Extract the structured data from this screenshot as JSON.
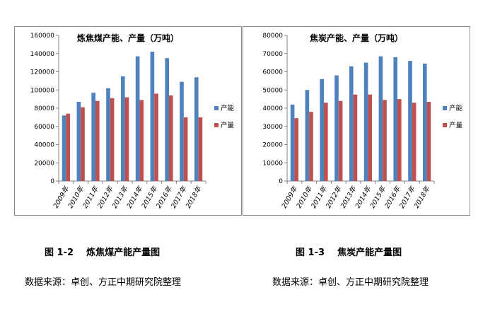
{
  "charts": [
    {
      "id": "left",
      "caption": "图 1-2    炼焦煤产能产量图",
      "source": "数据来源：卓创、方正中期研究院整理",
      "chart_data": {
        "type": "bar",
        "title": "炼焦煤产能、产量（万吨）",
        "categories": [
          "2009年",
          "2010年",
          "2011年",
          "2012年",
          "2013年",
          "2014年",
          "2015年",
          "2016年",
          "2017年",
          "2018年"
        ],
        "series": [
          {
            "name": "产能",
            "color": "#4f81bd",
            "values": [
              72000,
              87000,
              97000,
              102000,
              115000,
              137000,
              142000,
              135000,
              109000,
              114000
            ]
          },
          {
            "name": "产量",
            "color": "#c0504d",
            "values": [
              74000,
              81000,
              88000,
              91000,
              92000,
              89000,
              96000,
              94000,
              70000,
              70000
            ]
          }
        ],
        "ylim": [
          0,
          160000
        ],
        "yticks": [
          0,
          20000,
          40000,
          60000,
          80000,
          100000,
          120000,
          140000,
          160000
        ],
        "legend": "right",
        "grid": false
      }
    },
    {
      "id": "right",
      "caption": "图 1-3    焦炭产能产量图",
      "source": "数据来源：卓创、方正中期研究院整理",
      "chart_data": {
        "type": "bar",
        "title": "焦炭产能、产量（万吨）",
        "categories": [
          "2009年",
          "2010年",
          "2011年",
          "2012年",
          "2013年",
          "2014年",
          "2015年",
          "2016年",
          "2017年",
          "2018年"
        ],
        "series": [
          {
            "name": "产能",
            "color": "#4f81bd",
            "values": [
              42000,
              50000,
              56000,
              58000,
              63000,
              65000,
              68500,
              68000,
              66000,
              64500
            ]
          },
          {
            "name": "产量",
            "color": "#c0504d",
            "values": [
              34500,
              38000,
              43000,
              44000,
              47500,
              47500,
              44500,
              45000,
              43000,
              43500
            ]
          }
        ],
        "ylim": [
          0,
          80000
        ],
        "yticks": [
          0,
          10000,
          20000,
          30000,
          40000,
          50000,
          60000,
          70000,
          80000
        ],
        "legend": "right",
        "grid": false
      }
    }
  ]
}
